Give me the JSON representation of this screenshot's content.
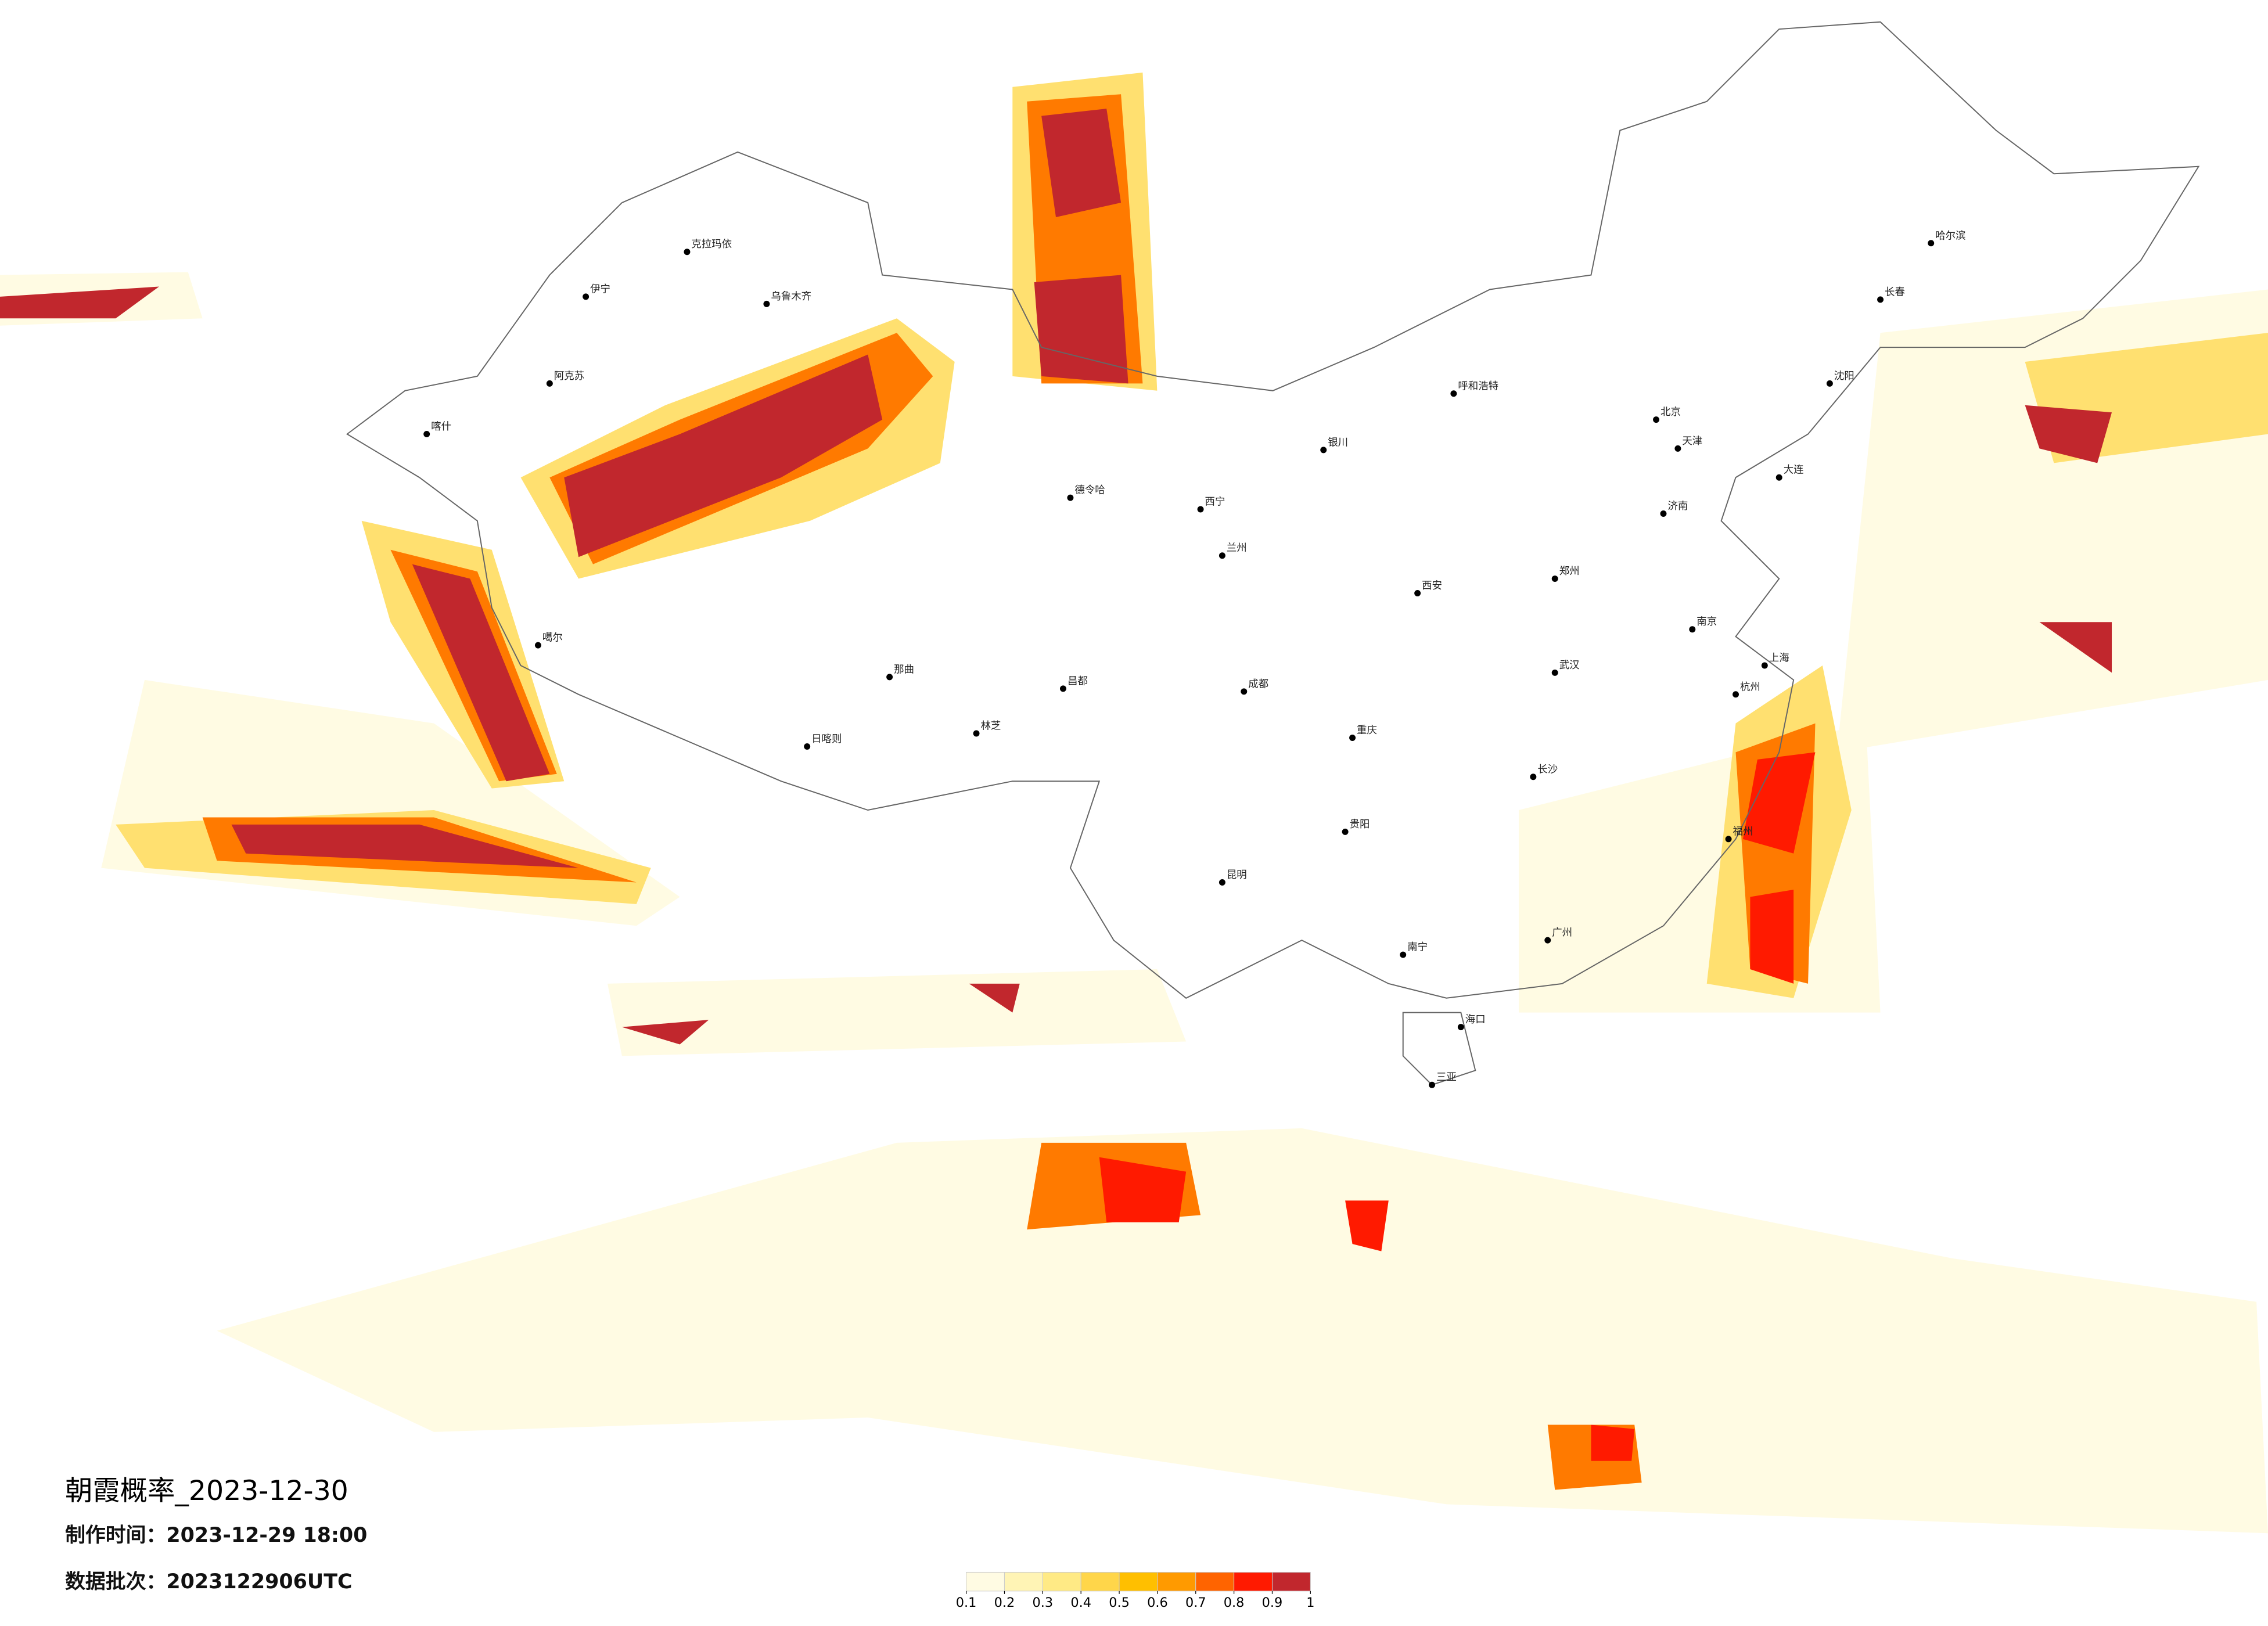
{
  "title": "朝霞概率_2023-12-30",
  "issued": "制作时间：2023-12-29 18:00",
  "batch": "数据批次：2023122906UTC",
  "colorbar": {
    "ticks": [
      0.1,
      0.2,
      0.3,
      0.4,
      0.5,
      0.6,
      0.7,
      0.8,
      0.9,
      1
    ],
    "colors": [
      "#fffbe3",
      "#fff4b5",
      "#ffea85",
      "#ffd64a",
      "#ffbf00",
      "#ff9a00",
      "#ff6400",
      "#ff1a00",
      "#c1272d"
    ]
  },
  "cities": [
    "克拉玛依",
    "乌鲁木齐",
    "伊宁",
    "阿克苏",
    "喀什",
    "噶尔",
    "日喀则",
    "那曲",
    "林芝",
    "昌都",
    "德令哈",
    "西宁",
    "兰州",
    "银川",
    "呼和浩特",
    "北京",
    "天津",
    "哈尔滨",
    "长春",
    "沈阳",
    "大连",
    "济南",
    "郑州",
    "西安",
    "成都",
    "重庆",
    "武汉",
    "长沙",
    "南京",
    "上海",
    "杭州",
    "福州",
    "广州",
    "南宁",
    "昆明",
    "贵阳",
    "海口",
    "三亚"
  ]
}
